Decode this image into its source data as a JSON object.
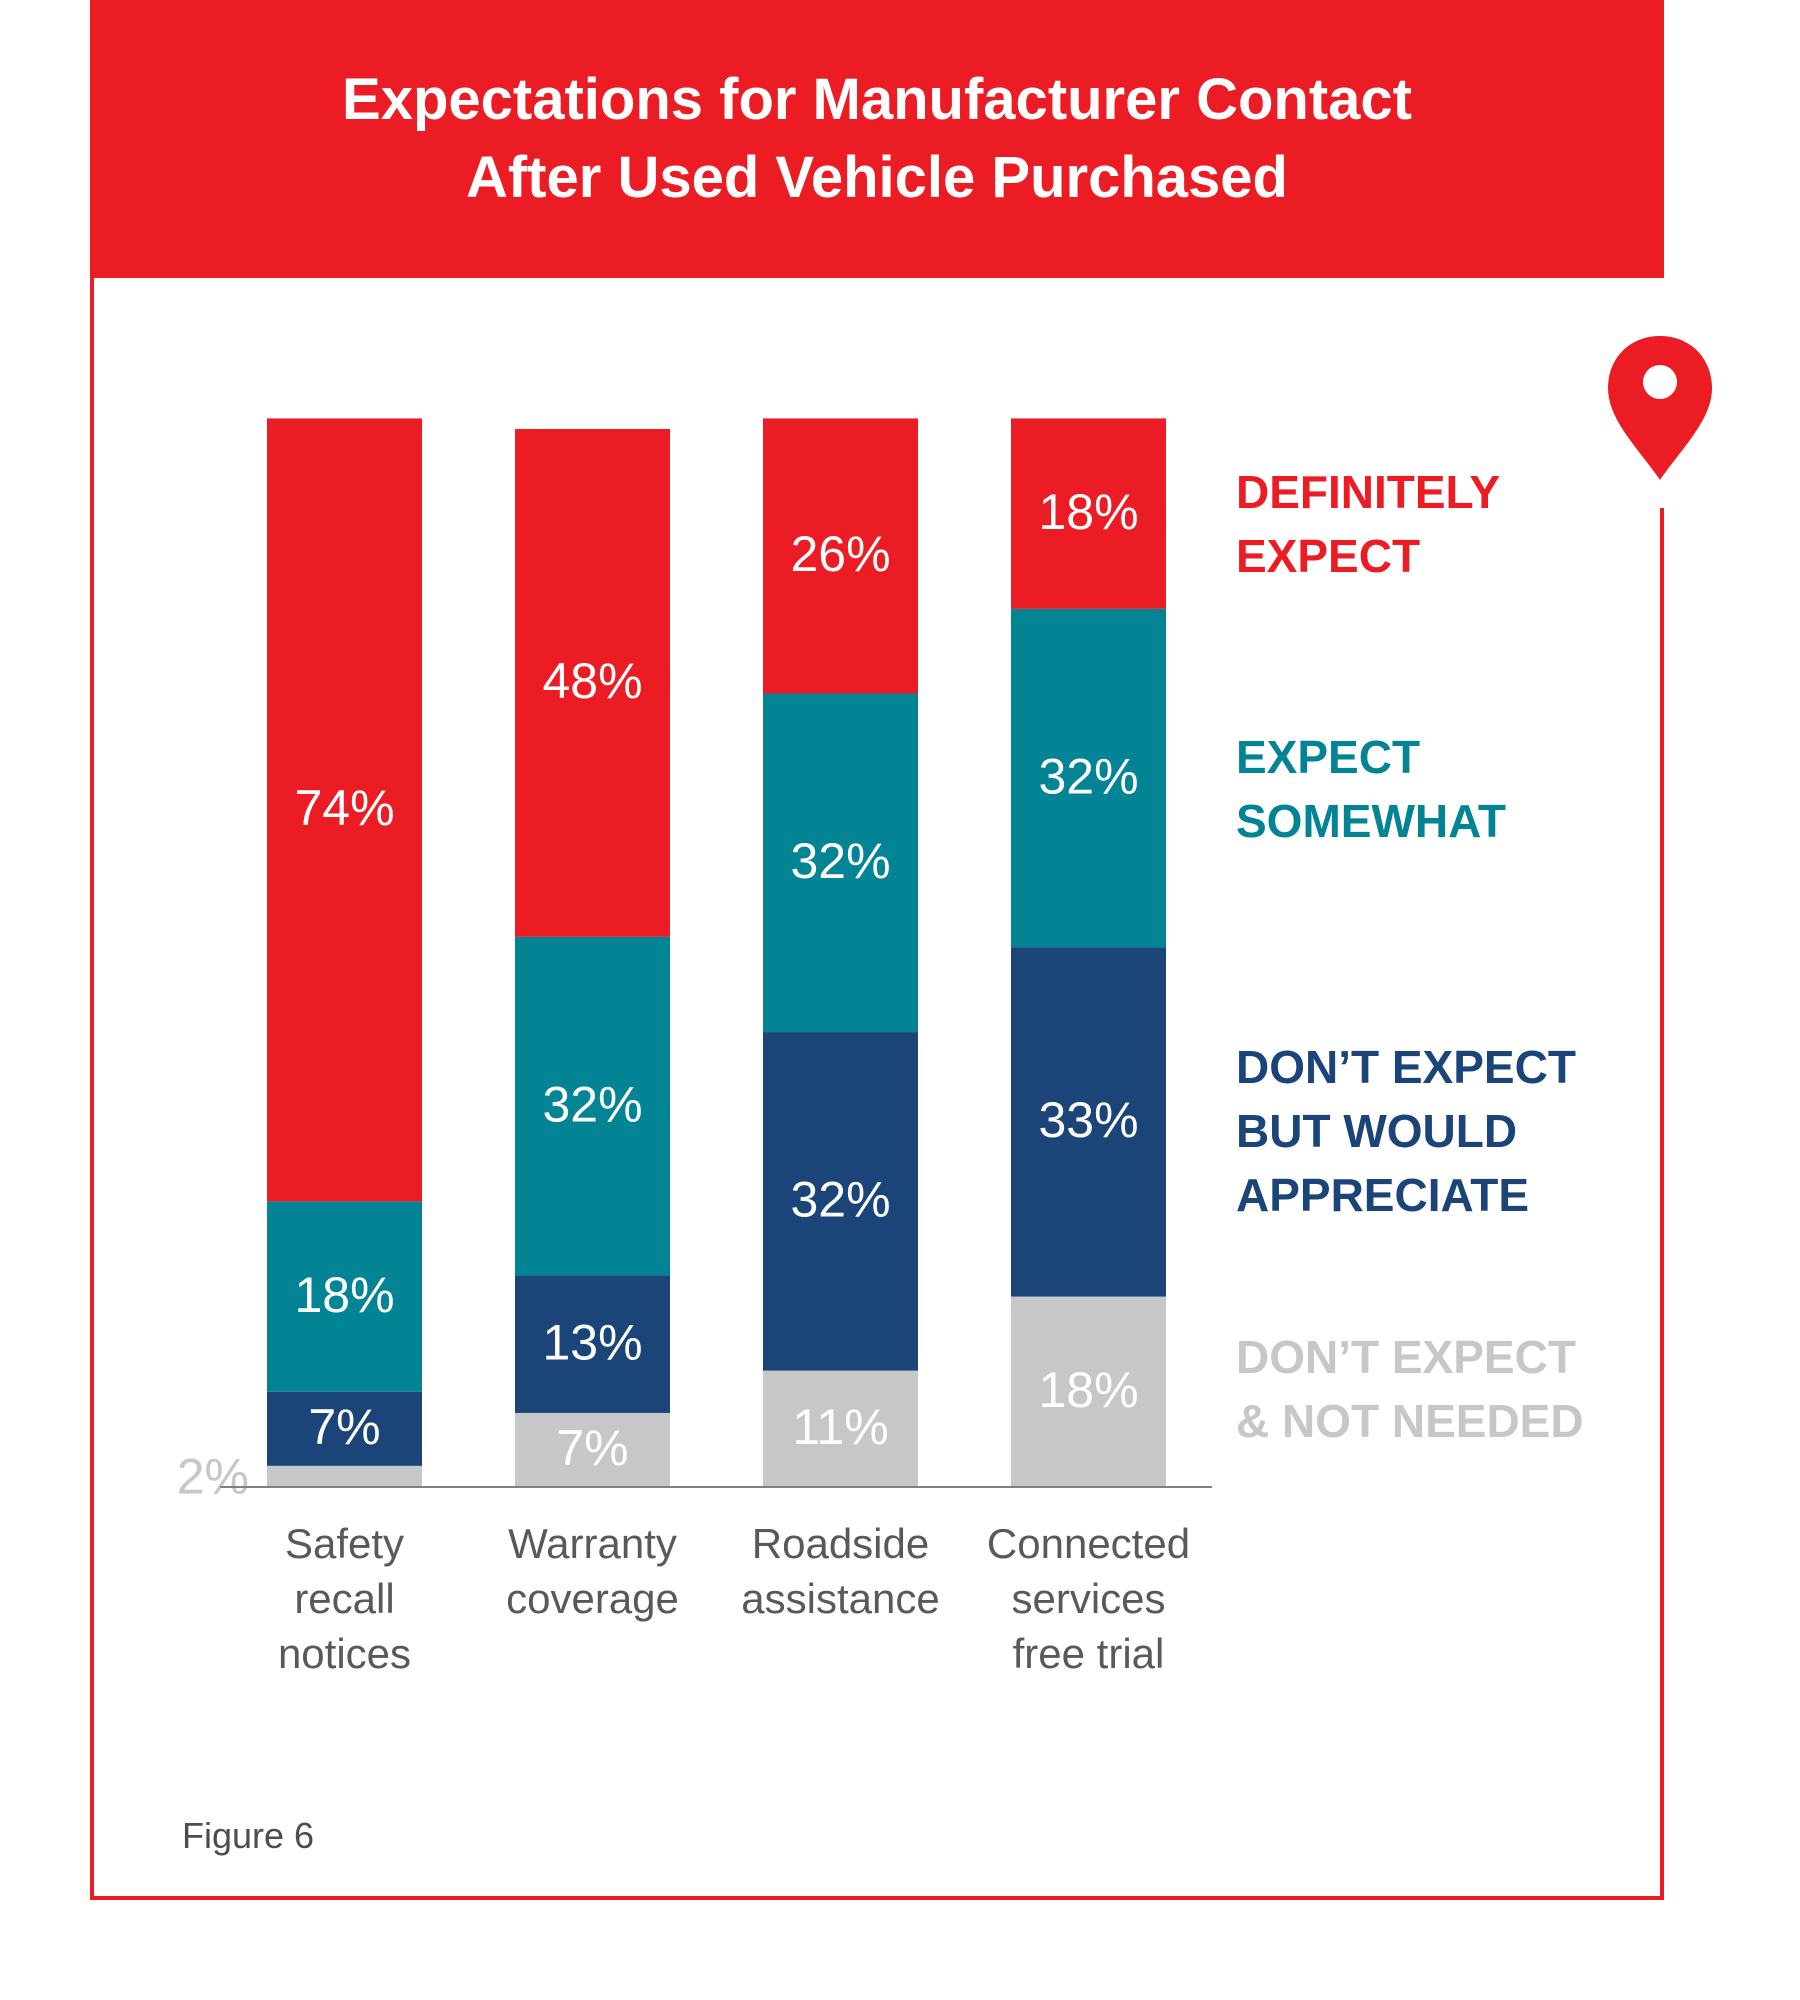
{
  "header": {
    "title_line1": "Expectations for Manufacturer Contact",
    "title_line2": "After Used Vehicle Purchased"
  },
  "figure_label": "Figure 6",
  "colors": {
    "brand_red": "#ec1c24",
    "definitely_expect": "#ec1c24",
    "expect_somewhat": "#028495",
    "dont_expect_but_appreciate": "#1b4579",
    "dont_expect_not_needed": "#c6c7c8",
    "category_label": "#58595b"
  },
  "icons": {
    "pin": "location-pin-icon"
  },
  "chart_data": {
    "type": "bar",
    "stacked": true,
    "categories": [
      "Safety\nrecall\nnotices",
      "Warranty\ncoverage",
      "Roadside\nassistance",
      "Connected\nservices\nfree trial"
    ],
    "series": [
      {
        "name": "DEFINITELY\nEXPECT",
        "color": "#ec1c24",
        "values": [
          74,
          48,
          26,
          18
        ],
        "labels": [
          "74%",
          "48%",
          "26%",
          "18%"
        ]
      },
      {
        "name": "EXPECT\nSOMEWHAT",
        "color": "#028495",
        "values": [
          18,
          32,
          32,
          32
        ],
        "labels": [
          "18%",
          "32%",
          "32%",
          "32%"
        ]
      },
      {
        "name": "DON’T EXPECT\nBUT WOULD\nAPPRECIATE",
        "color": "#1b4579",
        "values": [
          7,
          13,
          32,
          33
        ],
        "labels": [
          "7%",
          "13%",
          "32%",
          "33%"
        ]
      },
      {
        "name": "DON’T EXPECT\n& NOT NEEDED",
        "color": "#c6c7c8",
        "values": [
          2,
          7,
          11,
          18
        ],
        "labels": [
          "2%",
          "7%",
          "11%",
          "18%"
        ]
      }
    ],
    "ylim": [
      0,
      100
    ],
    "grid": false,
    "legend_position": "right"
  }
}
